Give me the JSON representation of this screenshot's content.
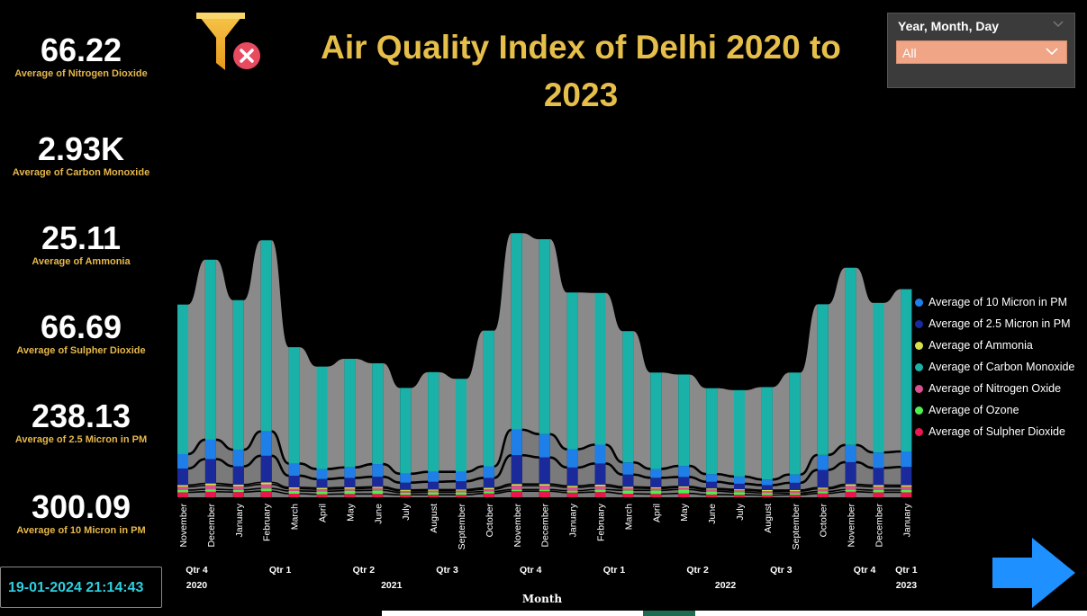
{
  "title": "Air Quality Index of Delhi 2020 to 2023",
  "kpis": [
    {
      "value": "66.22",
      "label": "Average of Nitrogen Dioxide"
    },
    {
      "value": "2.93K",
      "label": "Average of Carbon Monoxide"
    },
    {
      "value": "25.11",
      "label": "Average of Ammonia"
    },
    {
      "value": "66.69",
      "label": "Average of Sulpher Dioxide"
    },
    {
      "value": "238.13",
      "label": "Average of 2.5 Micron in PM"
    },
    {
      "value": "300.09",
      "label": "Average of 10 Micron in PM"
    }
  ],
  "slicer": {
    "header": "Year, Month, Day",
    "selected": "All"
  },
  "timestamp": "19-01-2024 21:14:43",
  "icons": {
    "filter": "clear-filter-icon",
    "next": "next-page-arrow-icon"
  },
  "chart_data": {
    "type": "bar",
    "stacked": true,
    "ribbon": true,
    "xlabel": "Month",
    "ylabel": "",
    "ylim": [
      0,
      6300
    ],
    "categories": [
      "November",
      "December",
      "January",
      "February",
      "March",
      "April",
      "May",
      "June",
      "July",
      "August",
      "September",
      "October",
      "November",
      "December",
      "January",
      "February",
      "March",
      "April",
      "May",
      "June",
      "July",
      "August",
      "September",
      "October",
      "November",
      "December",
      "January"
    ],
    "quarters": [
      {
        "label": "Qtr 4",
        "span": 2
      },
      {
        "label": "Qtr 1",
        "span": 4
      },
      {
        "label": "Qtr 2",
        "span": 2
      },
      {
        "label": "Qtr 3",
        "span": 4
      },
      {
        "label": "Qtr 4",
        "span": 2
      },
      {
        "label": "Qtr 1",
        "span": 4
      },
      {
        "label": "Qtr 2",
        "span": 2
      },
      {
        "label": "Qtr 3",
        "span": 4
      },
      {
        "label": "Qtr 4",
        "span": 2
      },
      {
        "label": "Qtr 1",
        "span": 1
      }
    ],
    "years": [
      {
        "label": "2020",
        "span": 2
      },
      {
        "label": "2021",
        "span": 12
      },
      {
        "label": "2022",
        "span": 12
      },
      {
        "label": "2023",
        "span": 1
      }
    ],
    "series": [
      {
        "name": "Average of Sulpher Dioxide",
        "color": "#e8174d",
        "values": [
          90,
          100,
          95,
          110,
          65,
          55,
          60,
          60,
          45,
          45,
          45,
          70,
          110,
          110,
          85,
          95,
          65,
          60,
          70,
          50,
          45,
          40,
          45,
          70,
          100,
          90,
          90
        ]
      },
      {
        "name": "Average of Ozone",
        "color": "#4ef04e",
        "values": [
          40,
          45,
          40,
          50,
          50,
          55,
          60,
          65,
          40,
          45,
          45,
          35,
          30,
          30,
          35,
          45,
          60,
          65,
          70,
          60,
          50,
          40,
          30,
          35,
          40,
          40,
          40
        ]
      },
      {
        "name": "Average of Nitrogen Oxide",
        "color": "#d8508f",
        "values": [
          60,
          70,
          65,
          75,
          40,
          35,
          35,
          40,
          30,
          30,
          30,
          40,
          70,
          70,
          60,
          60,
          40,
          35,
          35,
          30,
          30,
          30,
          35,
          45,
          65,
          60,
          60
        ]
      },
      {
        "name": "Average of Ammonia",
        "color": "#d8e04a",
        "values": [
          30,
          35,
          30,
          35,
          25,
          25,
          25,
          25,
          20,
          20,
          20,
          25,
          30,
          30,
          28,
          30,
          25,
          22,
          22,
          20,
          20,
          20,
          22,
          25,
          30,
          30,
          28
        ]
      },
      {
        "name": "Average of 2.5 Micron in PM",
        "color": "#1a2a9a",
        "values": [
          300,
          440,
          330,
          480,
          210,
          160,
          170,
          180,
          130,
          140,
          150,
          180,
          520,
          480,
          330,
          380,
          220,
          170,
          170,
          120,
          100,
          90,
          130,
          320,
          400,
          310,
          330
        ]
      },
      {
        "name": "Average of 10 Micron in PM",
        "color": "#1f7fe8",
        "values": [
          260,
          350,
          300,
          440,
          220,
          180,
          190,
          230,
          160,
          180,
          170,
          210,
          460,
          420,
          330,
          340,
          220,
          160,
          200,
          140,
          130,
          100,
          150,
          270,
          310,
          280,
          280
        ]
      },
      {
        "name": "Average of Carbon Monoxide",
        "color": "#1ab2a8",
        "values": [
          2700,
          3250,
          2700,
          3450,
          2100,
          1850,
          1960,
          1820,
          1550,
          1800,
          1680,
          2450,
          3550,
          3520,
          2830,
          2740,
          2370,
          1740,
          1650,
          1550,
          1560,
          1670,
          1840,
          2720,
          3200,
          2700,
          2930
        ]
      }
    ]
  }
}
